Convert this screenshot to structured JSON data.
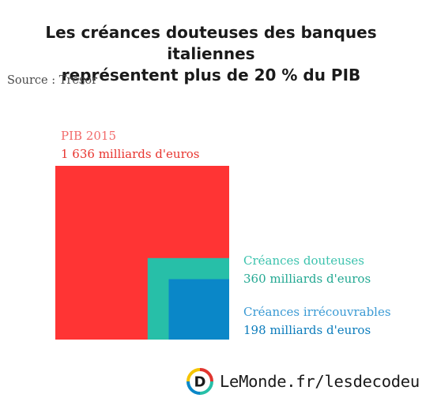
{
  "title_line1": "Les créances douteuses des banques italiennes",
  "title_line2": "représentent plus de 20 % du PIB",
  "source": "Source : Trésor",
  "chart_data": {
    "type": "nested-area-squares",
    "unit": "milliards d'euros",
    "items": [
      {
        "name": "PIB 2015",
        "value": 1636,
        "label": "1 636 milliards d'euros",
        "color": "#ff3434"
      },
      {
        "name": "Créances douteuses",
        "value": 360,
        "label": "360 milliards d'euros",
        "color": "#27bfa8"
      },
      {
        "name": "Créances irrécouvrables",
        "value": 198,
        "label": "198 milliards d'euros",
        "color": "#0a87c8"
      }
    ]
  },
  "footer": {
    "logo_letter": "D",
    "logo_icon": "lesdecodeurs-logo-icon",
    "text": "LeMonde.fr/lesdecodeurs"
  }
}
